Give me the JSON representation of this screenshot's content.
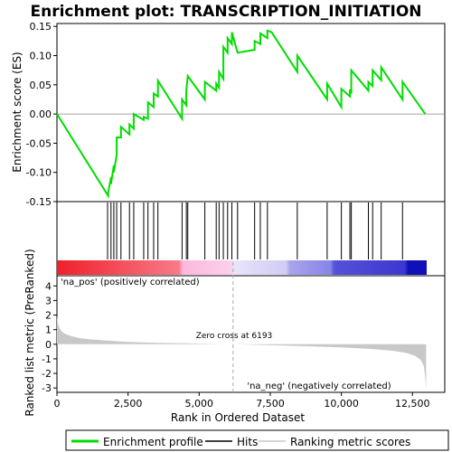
{
  "title": "Enrichment plot: TRANSCRIPTION_INITIATION",
  "colors": {
    "enrichment_line": "#00dd00",
    "hits": "#000000",
    "metric_fill": "#c8c8c8",
    "pos_label": "#cc0000",
    "neg_label": "#0000cc",
    "zero_cross_line": "#aaaaaa"
  },
  "chart_data": [
    {
      "type": "line",
      "name": "enrichment-score-panel",
      "ylabel": "Enrichment score (ES)",
      "xlim": [
        0,
        13000
      ],
      "ylim": [
        -0.15,
        0.155
      ],
      "yticks": [
        -0.15,
        -0.1,
        -0.05,
        0.0,
        0.05,
        0.1,
        0.15
      ],
      "ytick_labels": [
        "-0.15",
        "-0.10",
        "-0.05",
        "0.00",
        "0.05",
        "0.10",
        "0.15"
      ],
      "series": [
        {
          "x": [
            0,
            1800,
            1800,
            1900,
            1900,
            2000,
            2000,
            2100,
            2100,
            2250,
            2250,
            2550,
            2550,
            2700,
            2700,
            3050,
            3050,
            3200,
            3200,
            3400,
            3400,
            3550,
            3550,
            4400,
            4400,
            4550,
            4550,
            4600,
            4600,
            5200,
            5200,
            5600,
            5600,
            5700,
            5700,
            5850,
            5850,
            6000,
            6000,
            6150,
            6150,
            6350,
            6350,
            6950,
            6950,
            7150,
            7150,
            7400,
            7400,
            7550,
            7550,
            8450,
            8450,
            9500,
            9500,
            10000,
            10000,
            10300,
            10300,
            10350,
            10350,
            10950,
            10950,
            11100,
            11100,
            11400,
            11400,
            12150,
            12150,
            12950
          ],
          "y": [
            0.0,
            -0.14,
            -0.135,
            -0.108,
            -0.12,
            -0.088,
            -0.1,
            -0.07,
            -0.04,
            -0.04,
            -0.022,
            -0.035,
            -0.018,
            -0.025,
            0.0,
            -0.01,
            -0.005,
            -0.008,
            0.02,
            0.012,
            0.035,
            0.03,
            0.057,
            -0.008,
            0.025,
            0.015,
            0.04,
            0.065,
            0.065,
            0.025,
            0.055,
            0.04,
            0.052,
            0.045,
            0.072,
            0.06,
            0.115,
            0.105,
            0.13,
            0.12,
            0.14,
            0.105,
            0.105,
            0.11,
            0.125,
            0.12,
            0.138,
            0.13,
            0.143,
            0.14,
            0.14,
            0.072,
            0.1,
            0.025,
            0.052,
            0.012,
            0.043,
            0.03,
            0.042,
            0.035,
            0.075,
            0.04,
            0.055,
            0.048,
            0.075,
            0.058,
            0.08,
            0.025,
            0.055,
            0.0
          ]
        }
      ]
    },
    {
      "type": "hits",
      "name": "hits-panel",
      "x": [
        1780,
        1900,
        2000,
        2100,
        2250,
        2550,
        2700,
        3050,
        3200,
        3400,
        3550,
        4400,
        4550,
        4600,
        5200,
        5600,
        5700,
        5850,
        6000,
        6150,
        6350,
        6950,
        7150,
        7400,
        8450,
        9500,
        10000,
        10300,
        10350,
        10950,
        11100,
        11400,
        12150
      ]
    },
    {
      "type": "area",
      "name": "ranked-metric-panel",
      "xlabel": "Rank in Ordered Dataset",
      "ylabel": "Ranked list metric (PreRanked)",
      "xlim": [
        0,
        13000
      ],
      "ylim": [
        -3.3,
        4.7
      ],
      "yticks": [
        -3,
        -2,
        -1,
        0,
        1,
        2,
        3,
        4
      ],
      "ytick_labels": [
        "-3",
        "-2",
        "-1",
        "0",
        "1",
        "2",
        "3",
        "4"
      ],
      "xticks": [
        0,
        2500,
        5000,
        7500,
        10000,
        12500
      ],
      "xtick_labels": [
        "0",
        "2,500",
        "5,000",
        "7,500",
        "10,000",
        "12,500"
      ],
      "x": [
        0,
        50,
        150,
        300,
        500,
        800,
        1200,
        1800,
        2500,
        3500,
        4500,
        5500,
        6193,
        7000,
        8000,
        9000,
        10000,
        11000,
        11800,
        12300,
        12600,
        12800,
        12900,
        12950,
        12980
      ],
      "values": [
        1.9,
        1.3,
        0.9,
        0.7,
        0.55,
        0.42,
        0.33,
        0.24,
        0.16,
        0.1,
        0.06,
        0.02,
        0.0,
        -0.04,
        -0.09,
        -0.15,
        -0.22,
        -0.32,
        -0.45,
        -0.6,
        -0.8,
        -1.1,
        -1.5,
        -2.3,
        -3.1
      ],
      "zero_cross_text": "Zero cross at 6193",
      "zero_cross_x": 6193,
      "pos_label": "'na_pos' (positively correlated)",
      "neg_label": "'na_neg' (negatively correlated)"
    }
  ],
  "legend": {
    "items": [
      {
        "label": "Enrichment profile",
        "color": "#00dd00"
      },
      {
        "label": "Hits",
        "color": "#000000"
      },
      {
        "label": "Ranking metric scores",
        "color": "#c8c8c8"
      }
    ]
  }
}
